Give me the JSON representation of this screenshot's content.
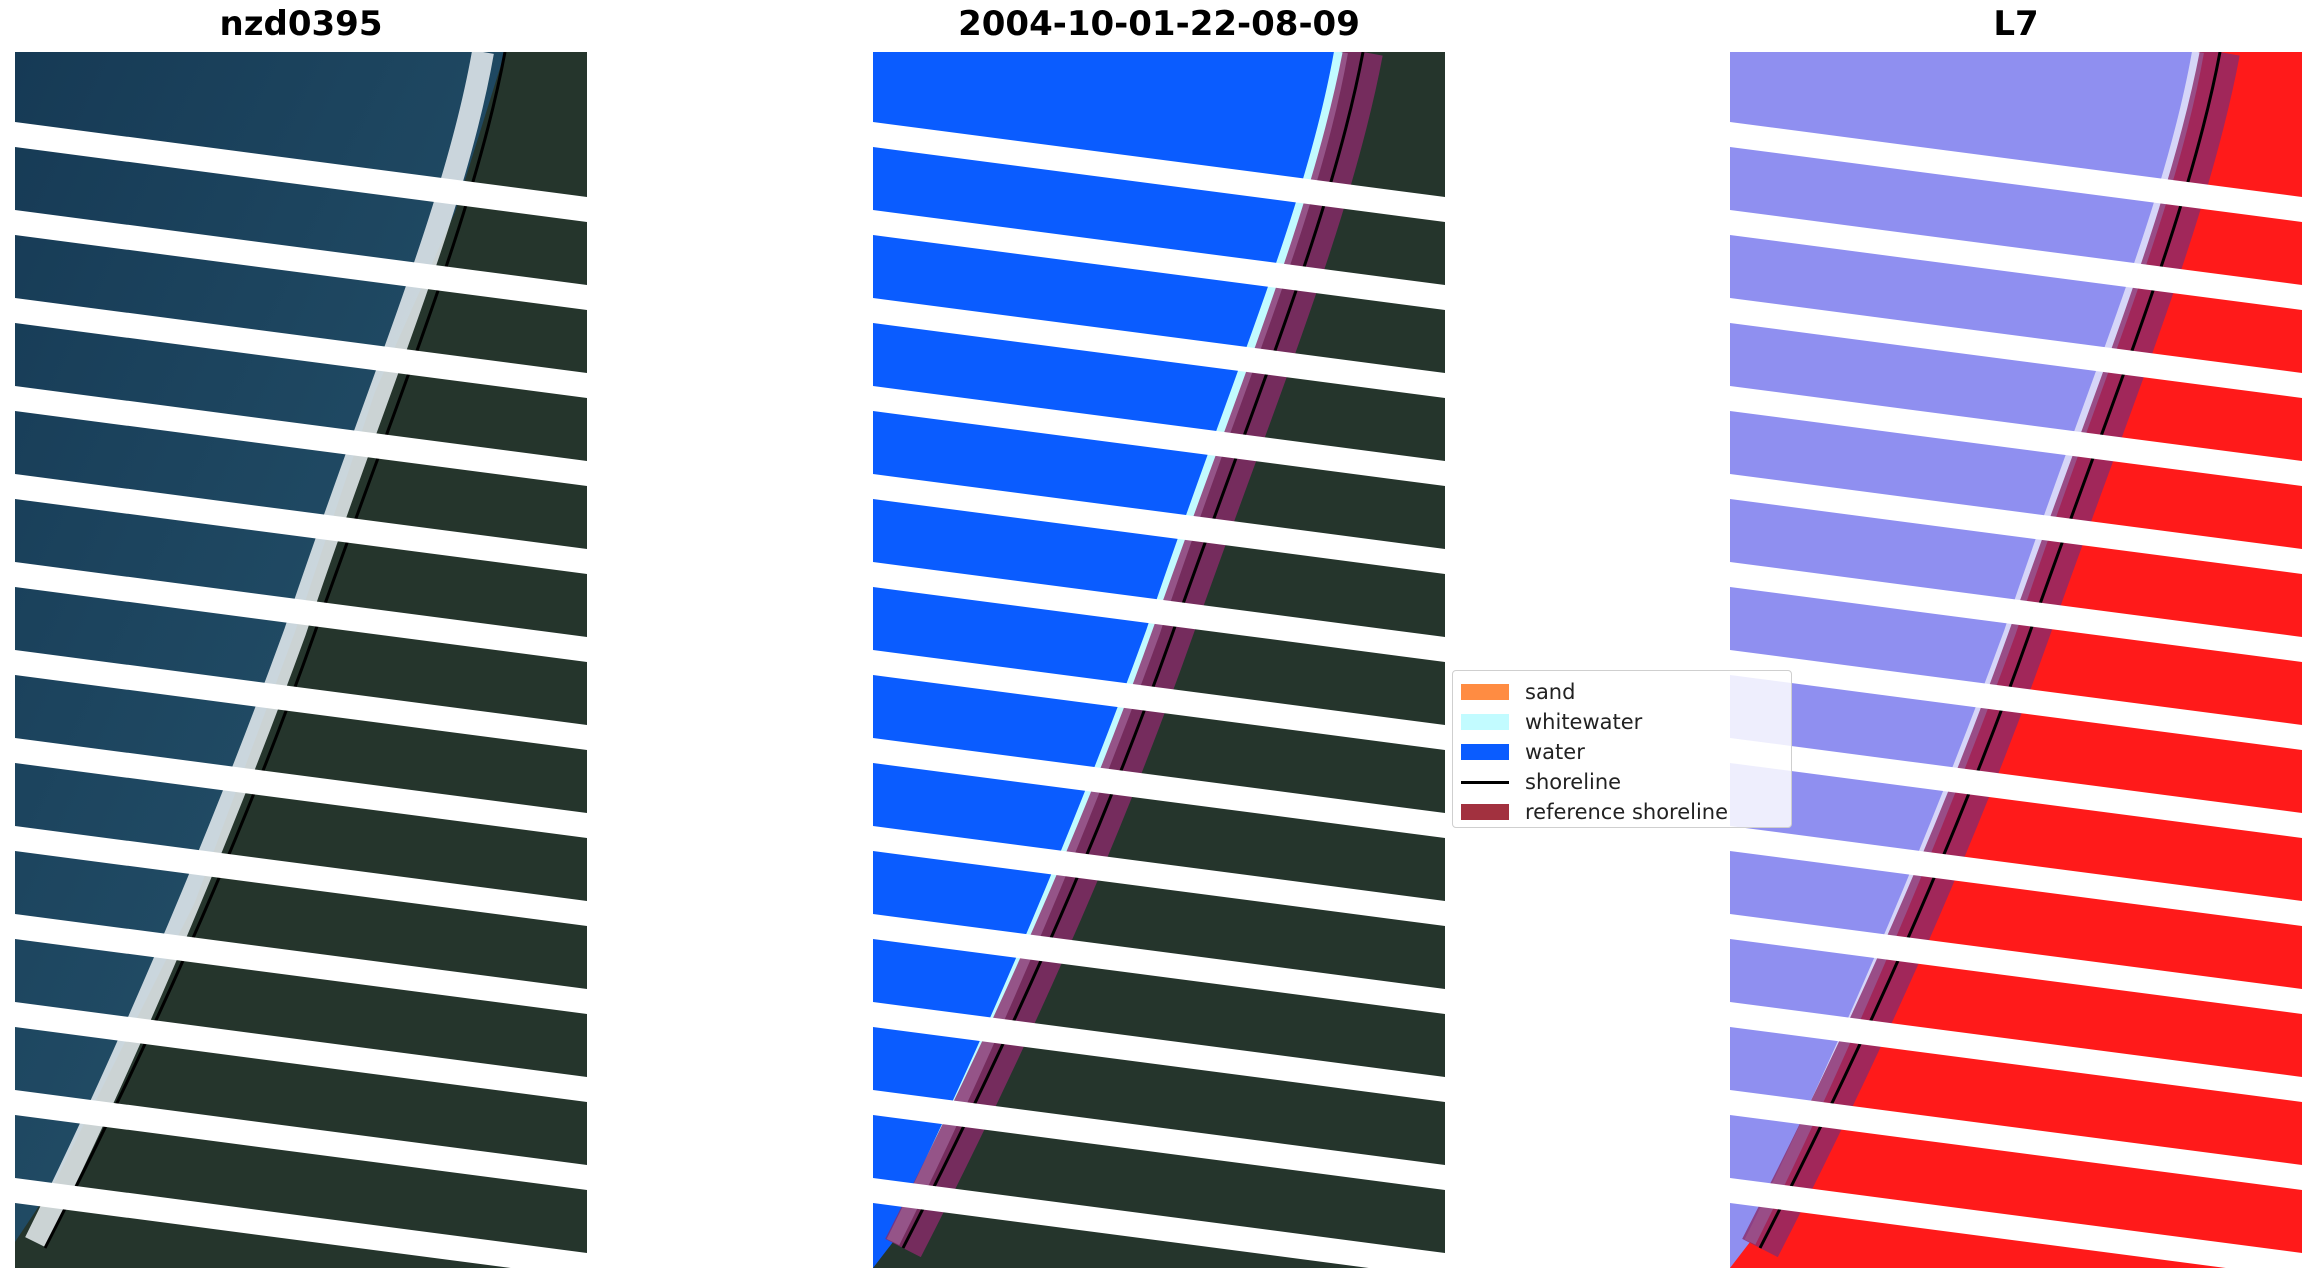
{
  "panels": [
    {
      "title": "nzd0395",
      "view": "rgb-image"
    },
    {
      "title": "2004-10-01-22-08-09",
      "view": "classified-image"
    },
    {
      "title": "L7",
      "view": "index-image"
    }
  ],
  "legend": {
    "items": [
      {
        "label": "sand",
        "kind": "patch",
        "color": "#ff8c42"
      },
      {
        "label": "whitewater",
        "kind": "patch",
        "color": "#c2fbff"
      },
      {
        "label": "water",
        "kind": "patch",
        "color": "#0a5cff"
      },
      {
        "label": "shoreline",
        "kind": "line",
        "color": "#000000"
      },
      {
        "label": "reference shoreline",
        "kind": "patch",
        "color": "#a2313f"
      }
    ]
  },
  "colors": {
    "ocean": "#1f4a66",
    "land": "#25352c",
    "surf": "#e9eef2",
    "classified_water": "#0a5cff",
    "classified_whitewater": "#c2fbff",
    "index_water": "#8f8ff0",
    "index_land": "#ff1a1a",
    "reference_shoreline": "#a2313f",
    "shoreline": "#000000"
  }
}
